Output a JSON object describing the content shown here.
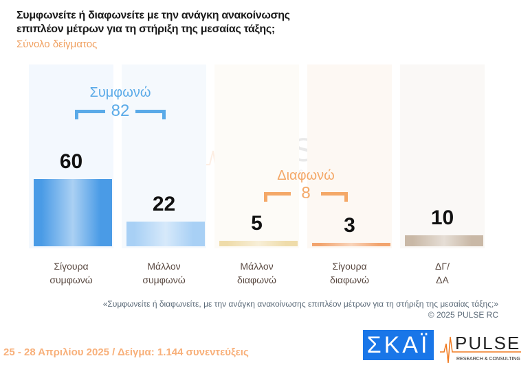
{
  "title_line1": "Συμφωνείτε ή διαφωνείτε με την ανάγκη ανακοίνωσης",
  "title_line2": "επιπλέον μέτρων για τη στήριξη της μεσαίας τάξης;",
  "subtitle": "Σύνολο δείγματος",
  "chart_data": {
    "type": "bar",
    "categories": [
      "Σίγουρα συμφωνώ",
      "Μάλλον συμφωνώ",
      "Μάλλον διαφωνώ",
      "Σίγουρα διαφωνώ",
      "ΔΓ/ ΔΑ"
    ],
    "category_lines": [
      [
        "Σίγουρα",
        "συμφωνώ"
      ],
      [
        "Μάλλον",
        "συμφωνώ"
      ],
      [
        "Μάλλον",
        "διαφωνώ"
      ],
      [
        "Σίγουρα",
        "διαφωνώ"
      ],
      [
        "ΔΓ/",
        "ΔΑ"
      ]
    ],
    "values": [
      60,
      22,
      5,
      3,
      10
    ],
    "colors": [
      "#4a9be6",
      "#a8d0f5",
      "#efdcaa",
      "#f2a46e",
      "#c9b8a6"
    ],
    "groups": [
      {
        "label": "Συμφωνώ",
        "total": "82",
        "color": "#5aaae8"
      },
      {
        "label": "Διαφωνώ",
        "total": "8",
        "color": "#f4a868"
      }
    ]
  },
  "note": "«Συμφωνείτε ή διαφωνείτε, με την ανάγκη ανακοίνωσης επιπλέον μέτρων για τη στήριξη της μεσαίας τάξης;»",
  "copyright": "©  2025  PULSE RC",
  "footer": "25 - 28 Απριλίου 2025  /  Δείγμα:  1.144 συνεντεύξεις",
  "logos": {
    "skai": "ΣΚΑΪ",
    "pulse": "PULSE",
    "pulse_sub": "RESEARCH & CONSULTING"
  }
}
